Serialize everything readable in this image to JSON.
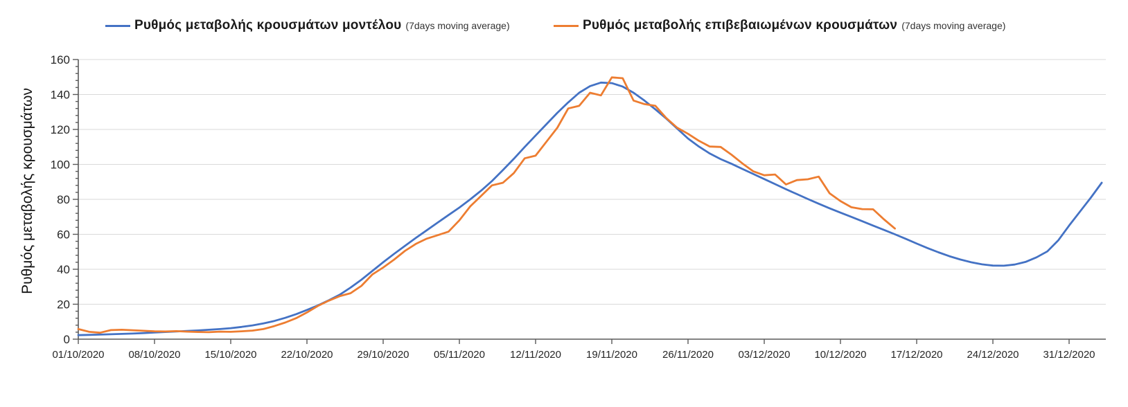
{
  "chart_data": {
    "type": "line",
    "title": "",
    "ylabel": "Ρυθμός μεταβολής κρουσμάτων",
    "xlabel": "",
    "ylim": [
      0,
      160
    ],
    "y_major_step": 20,
    "y_minor_step": 4,
    "grid": "horizontal-only",
    "legend_position": "top",
    "background_color": "#ffffff",
    "gridline_color": "#d9d9d9",
    "axis_color": "#595959",
    "tick_label_color": "#262626",
    "x_tick_labels": [
      "01/10/2020",
      "08/10/2020",
      "15/10/2020",
      "22/10/2020",
      "29/10/2020",
      "05/11/2020",
      "12/11/2020",
      "19/11/2020",
      "26/11/2020",
      "03/12/2020",
      "10/12/2020",
      "17/12/2020",
      "24/12/2020",
      "31/12/2020"
    ],
    "x_tick_interval_days": 7,
    "series": [
      {
        "name": "Ρυθμός μεταβολής κρουσμάτων μοντέλου",
        "suffix": "(7days moving average)",
        "color": "#4472C4",
        "start_day_index": 0,
        "values_daily": [
          2.3,
          2.45,
          2.6,
          2.8,
          3.0,
          3.2,
          3.5,
          3.8,
          4.1,
          4.4,
          4.7,
          5.0,
          5.4,
          5.8,
          6.3,
          7.0,
          7.9,
          9.0,
          10.4,
          12.2,
          14.3,
          16.7,
          19.3,
          22.2,
          25.4,
          29.5,
          34.0,
          39.0,
          44.0,
          48.8,
          53.4,
          57.9,
          62.3,
          66.7,
          71.0,
          75.3,
          80.0,
          85.0,
          90.5,
          96.8,
          103.2,
          110.0,
          116.5,
          123.0,
          129.5,
          135.5,
          141.0,
          144.8,
          146.8,
          146.5,
          144.5,
          141.0,
          136.5,
          131.5,
          126.2,
          120.5,
          114.8,
          110.2,
          106.2,
          103.0,
          100.3,
          97.4,
          94.5,
          91.6,
          88.7,
          85.8,
          83.0,
          80.2,
          77.5,
          74.9,
          72.4,
          70.0,
          67.5,
          65.0,
          62.5,
          60.0,
          57.4,
          54.7,
          52.1,
          49.7,
          47.5,
          45.6,
          44.0,
          42.8,
          42.1,
          42.0,
          42.7,
          44.2,
          46.8,
          50.2,
          56.5,
          65.0,
          73.0,
          81.0,
          89.5
        ]
      },
      {
        "name": "Ρυθμός μεταβολής επιβεβαιωμένων κρουσμάτων",
        "suffix": "(7days moving average)",
        "color": "#ED7D31",
        "start_day_index": 0,
        "values_daily": [
          5.8,
          4.2,
          3.7,
          5.2,
          5.4,
          5.1,
          4.8,
          4.5,
          4.4,
          4.6,
          4.3,
          4.1,
          4.0,
          4.3,
          4.2,
          4.5,
          4.9,
          5.8,
          7.5,
          9.5,
          12.0,
          15.3,
          19.0,
          22.0,
          24.6,
          26.3,
          30.5,
          37.0,
          41.0,
          45.5,
          50.5,
          54.5,
          57.5,
          59.5,
          61.5,
          68.0,
          76.0,
          82.0,
          88.0,
          89.5,
          95.0,
          103.5,
          105.0,
          113.0,
          121.0,
          132.0,
          133.5,
          141.0,
          139.5,
          149.8,
          149.3,
          136.5,
          134.5,
          133.5,
          126.5,
          121.0,
          117.5,
          113.5,
          110.2,
          110.0,
          105.5,
          100.5,
          96.0,
          93.8,
          94.2,
          88.5,
          91.0,
          91.5,
          93.0,
          83.5,
          79.0,
          75.5,
          74.4,
          74.3,
          68.5,
          63.3
        ]
      }
    ]
  }
}
